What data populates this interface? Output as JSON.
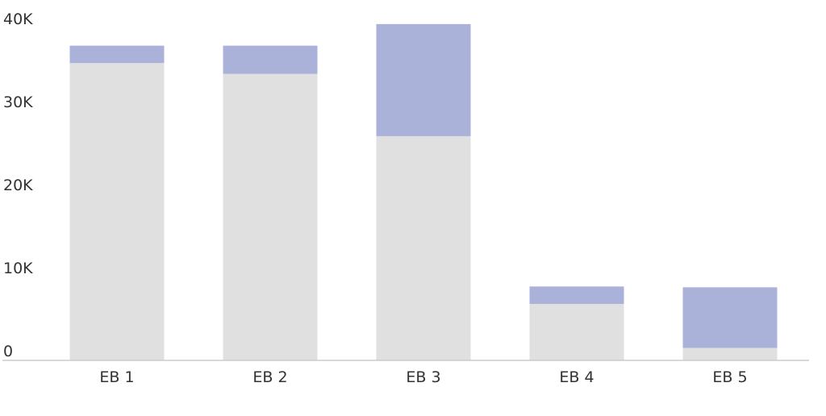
{
  "chart_data": {
    "type": "bar",
    "stacked": true,
    "categories": [
      "EB 1",
      "EB 2",
      "EB 3",
      "EB 4",
      "EB 5"
    ],
    "series": [
      {
        "values": [
          35800,
          34500,
          27000,
          6800,
          1500
        ],
        "color": "#e0e0e0"
      },
      {
        "values": [
          2100,
          3400,
          13500,
          2100,
          7300
        ],
        "color": "#aab2da"
      }
    ],
    "y_ticks": [
      0,
      10000,
      20000,
      30000,
      40000
    ],
    "y_tick_labels": [
      "0",
      "10K",
      "20K",
      "30K",
      "40K"
    ],
    "ylim": [
      0,
      40000
    ],
    "grid": false,
    "legend": "none",
    "title": "",
    "xlabel": "",
    "ylabel": ""
  }
}
